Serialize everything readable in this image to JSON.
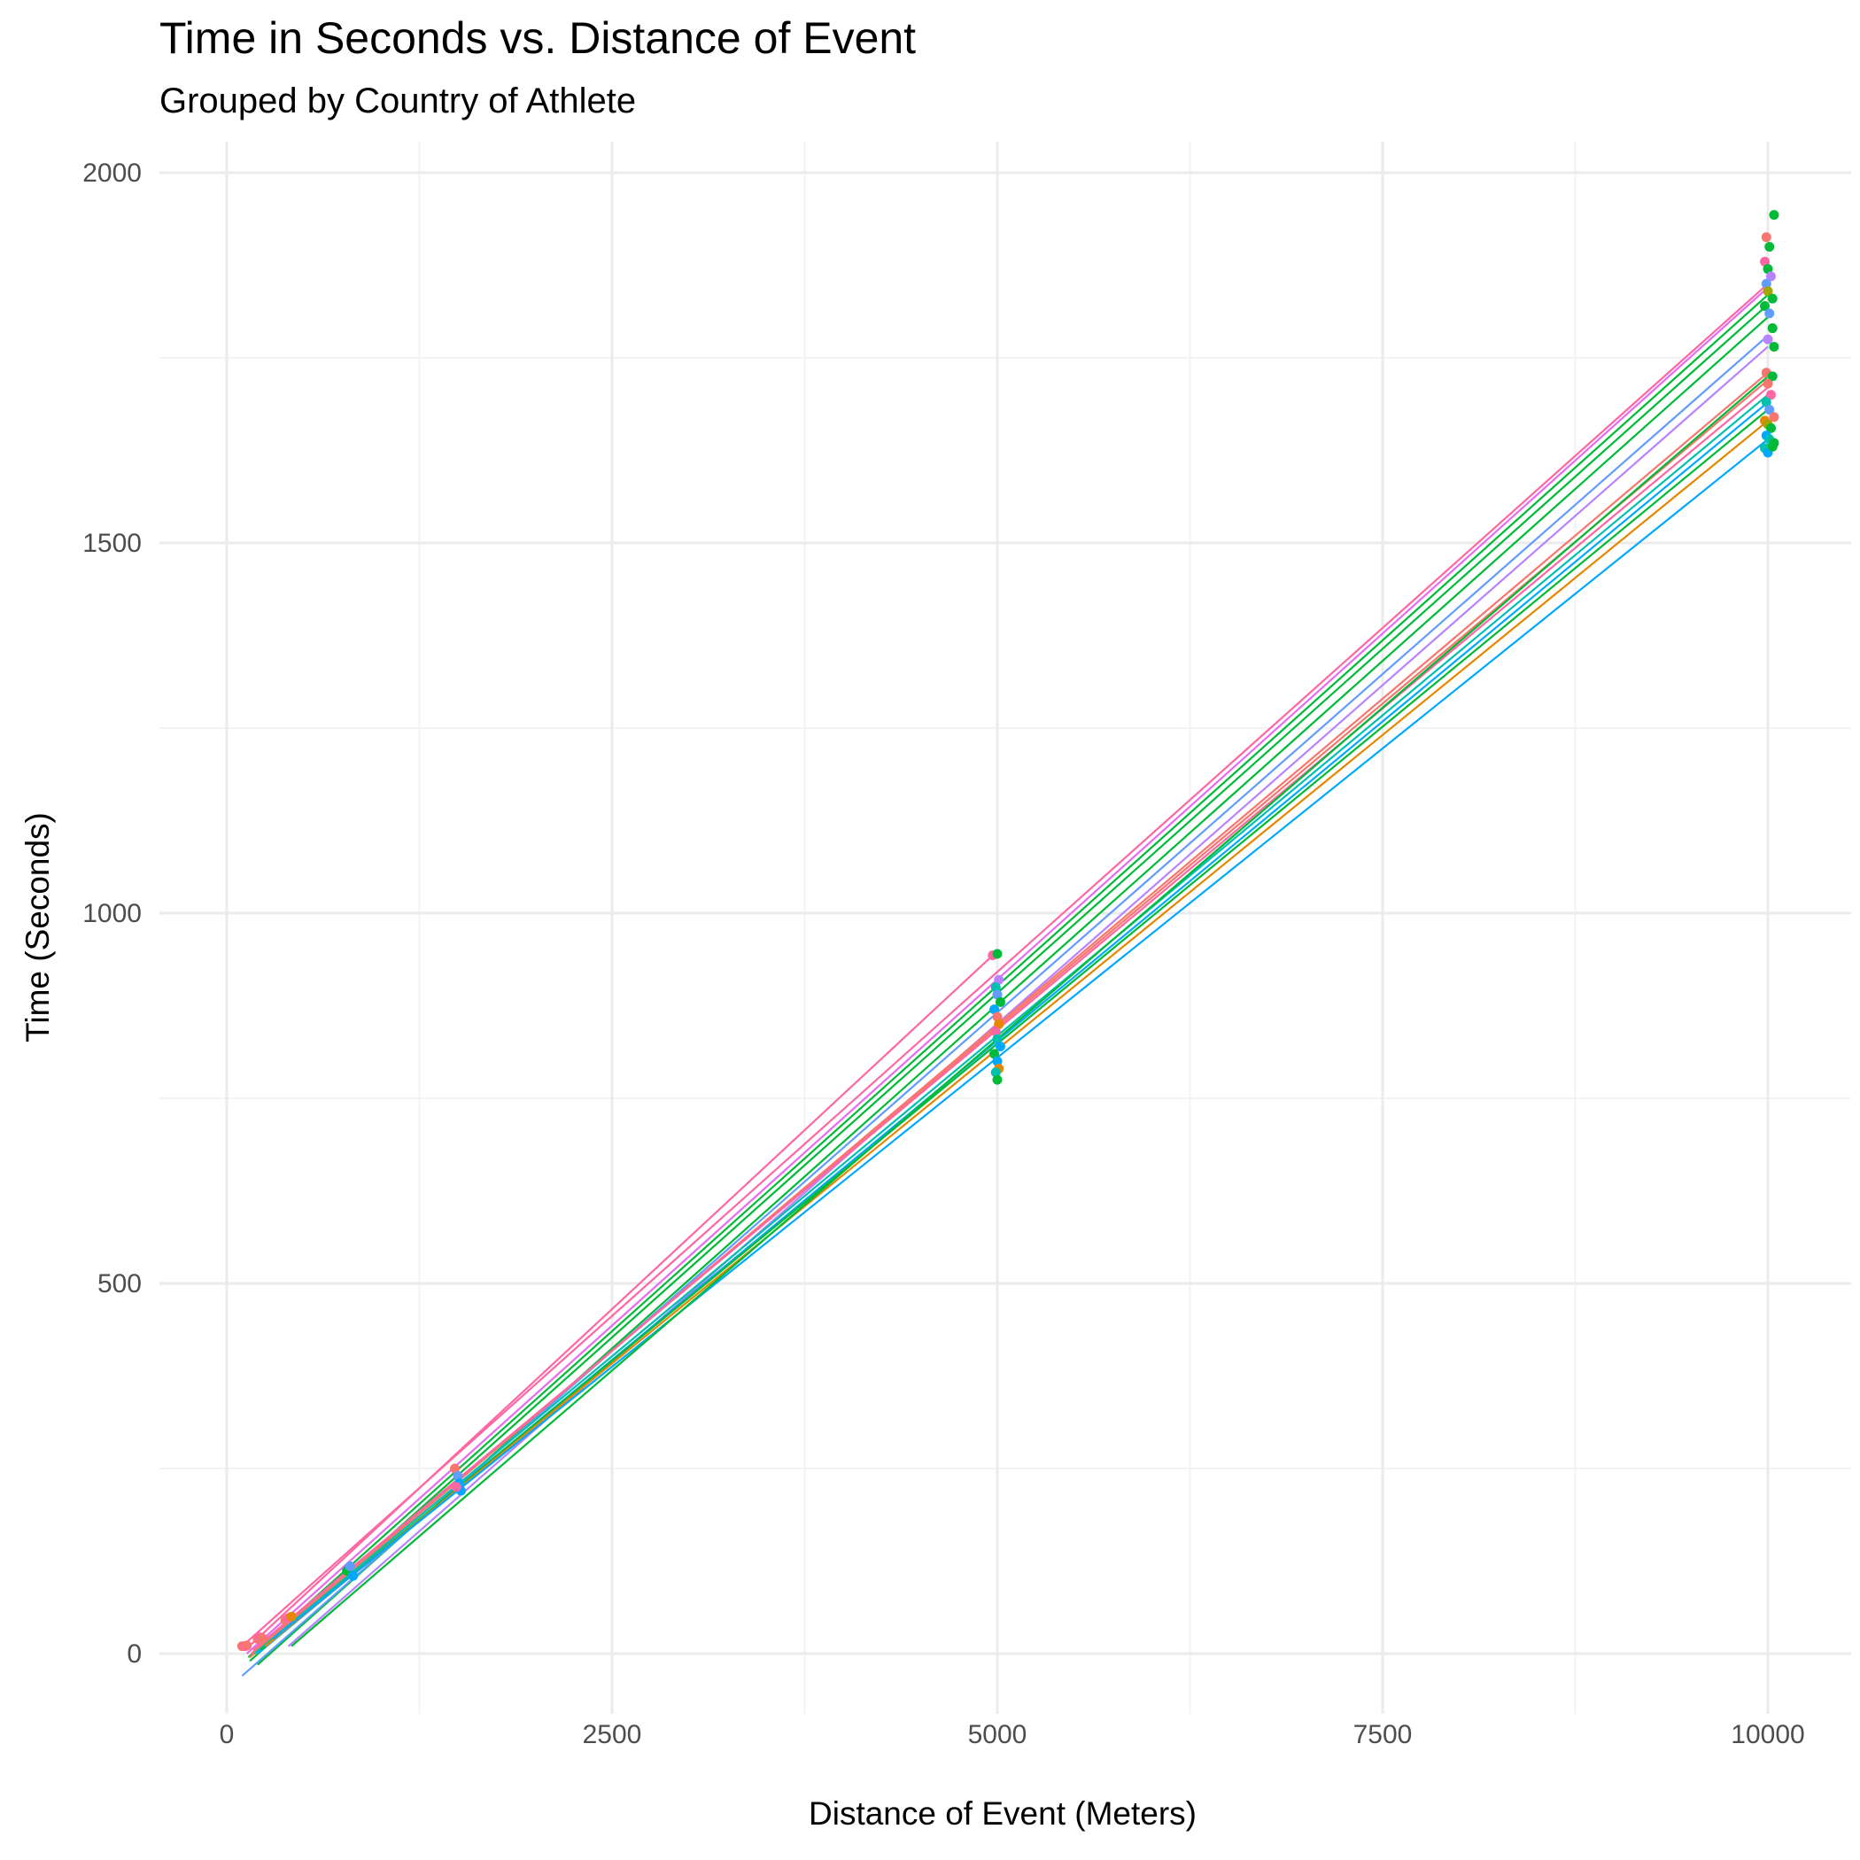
{
  "chart_data": {
    "type": "scatter",
    "title": "Time in Seconds vs. Distance of Event",
    "subtitle": "Grouped by Country of Athlete",
    "xlabel": "Distance of Event (Meters)",
    "ylabel": "Time (Seconds)",
    "xlim": [
      -400,
      10500
    ],
    "ylim": [
      -120,
      2040
    ],
    "x_ticks": [
      0,
      2500,
      5000,
      7500,
      10000
    ],
    "y_ticks": [
      0,
      500,
      1000,
      1500,
      2000
    ],
    "x_tick_labels": [
      "0",
      "2500",
      "5000",
      "7500",
      "10000"
    ],
    "y_tick_labels": [
      "0",
      "500",
      "1000",
      "1500",
      "2000"
    ],
    "grid": true,
    "legend": "none",
    "colors": {
      "background": "#ffffff",
      "grid_major": "#ebebeb",
      "grid_minor": "#f3f3f3",
      "palette": [
        "#F8766D",
        "#E58700",
        "#A3A500",
        "#00BA38",
        "#00C0AF",
        "#00A9FF",
        "#619CFF",
        "#B983FF",
        "#E76BF3",
        "#FF67A4"
      ]
    },
    "points": [
      {
        "x": 100,
        "y": 10,
        "color": "#F8766D"
      },
      {
        "x": 120,
        "y": 10,
        "color": "#FF67A4"
      },
      {
        "x": 130,
        "y": 11,
        "color": "#F8766D"
      },
      {
        "x": 200,
        "y": 20,
        "color": "#F8766D"
      },
      {
        "x": 215,
        "y": 22,
        "color": "#FF67A4"
      },
      {
        "x": 230,
        "y": 21,
        "color": "#F8766D"
      },
      {
        "x": 380,
        "y": 45,
        "color": "#F8766D"
      },
      {
        "x": 400,
        "y": 48,
        "color": "#FF67A4"
      },
      {
        "x": 420,
        "y": 50,
        "color": "#E58700"
      },
      {
        "x": 780,
        "y": 112,
        "color": "#00BA38"
      },
      {
        "x": 800,
        "y": 118,
        "color": "#619CFF"
      },
      {
        "x": 820,
        "y": 105,
        "color": "#00A9FF"
      },
      {
        "x": 1480,
        "y": 250,
        "color": "#F8766D"
      },
      {
        "x": 1500,
        "y": 240,
        "color": "#619CFF"
      },
      {
        "x": 1510,
        "y": 230,
        "color": "#00A9FF"
      },
      {
        "x": 1520,
        "y": 220,
        "color": "#00A9FF"
      },
      {
        "x": 1490,
        "y": 225,
        "color": "#FF67A4"
      },
      {
        "x": 4970,
        "y": 943,
        "color": "#FF67A4"
      },
      {
        "x": 5000,
        "y": 945,
        "color": "#00BA38"
      },
      {
        "x": 5010,
        "y": 910,
        "color": "#B983FF"
      },
      {
        "x": 4990,
        "y": 900,
        "color": "#00C0AF"
      },
      {
        "x": 5000,
        "y": 890,
        "color": "#619CFF"
      },
      {
        "x": 5020,
        "y": 880,
        "color": "#00BA38"
      },
      {
        "x": 4980,
        "y": 870,
        "color": "#00A9FF"
      },
      {
        "x": 5000,
        "y": 860,
        "color": "#F8766D"
      },
      {
        "x": 5010,
        "y": 850,
        "color": "#E58700"
      },
      {
        "x": 4990,
        "y": 840,
        "color": "#FF67A4"
      },
      {
        "x": 5000,
        "y": 830,
        "color": "#00C0AF"
      },
      {
        "x": 5020,
        "y": 820,
        "color": "#00A9FF"
      },
      {
        "x": 4980,
        "y": 810,
        "color": "#00BA38"
      },
      {
        "x": 5000,
        "y": 800,
        "color": "#00A9FF"
      },
      {
        "x": 5010,
        "y": 790,
        "color": "#E58700"
      },
      {
        "x": 4990,
        "y": 785,
        "color": "#00C0AF"
      },
      {
        "x": 5000,
        "y": 775,
        "color": "#00BA38"
      },
      {
        "x": 9990,
        "y": 1913,
        "color": "#F8766D"
      },
      {
        "x": 10040,
        "y": 1943,
        "color": "#00BA38"
      },
      {
        "x": 10010,
        "y": 1900,
        "color": "#00BA38"
      },
      {
        "x": 9980,
        "y": 1880,
        "color": "#FF67A4"
      },
      {
        "x": 10000,
        "y": 1870,
        "color": "#00BA38"
      },
      {
        "x": 10020,
        "y": 1860,
        "color": "#B983FF"
      },
      {
        "x": 9990,
        "y": 1850,
        "color": "#619CFF"
      },
      {
        "x": 10000,
        "y": 1840,
        "color": "#A3A500"
      },
      {
        "x": 10030,
        "y": 1830,
        "color": "#00BA38"
      },
      {
        "x": 9980,
        "y": 1820,
        "color": "#00BA38"
      },
      {
        "x": 10010,
        "y": 1810,
        "color": "#619CFF"
      },
      {
        "x": 10030,
        "y": 1790,
        "color": "#00BA38"
      },
      {
        "x": 10000,
        "y": 1775,
        "color": "#B983FF"
      },
      {
        "x": 10040,
        "y": 1765,
        "color": "#00BA38"
      },
      {
        "x": 9990,
        "y": 1730,
        "color": "#F8766D"
      },
      {
        "x": 10030,
        "y": 1725,
        "color": "#00BA38"
      },
      {
        "x": 10000,
        "y": 1715,
        "color": "#F8766D"
      },
      {
        "x": 10020,
        "y": 1700,
        "color": "#FF67A4"
      },
      {
        "x": 9990,
        "y": 1690,
        "color": "#00C0AF"
      },
      {
        "x": 10010,
        "y": 1680,
        "color": "#619CFF"
      },
      {
        "x": 10040,
        "y": 1670,
        "color": "#F8766D"
      },
      {
        "x": 9980,
        "y": 1665,
        "color": "#E58700"
      },
      {
        "x": 10000,
        "y": 1660,
        "color": "#A3A500"
      },
      {
        "x": 10020,
        "y": 1655,
        "color": "#00BA38"
      },
      {
        "x": 9990,
        "y": 1645,
        "color": "#00A9FF"
      },
      {
        "x": 10010,
        "y": 1640,
        "color": "#00C0AF"
      },
      {
        "x": 10040,
        "y": 1635,
        "color": "#00BA38"
      },
      {
        "x": 9980,
        "y": 1628,
        "color": "#00C0AF"
      },
      {
        "x": 10000,
        "y": 1622,
        "color": "#00A9FF"
      },
      {
        "x": 10030,
        "y": 1630,
        "color": "#00BA38"
      }
    ],
    "fit_lines": [
      {
        "x1": 100,
        "y1": 10,
        "x2": 9990,
        "y2": 1848,
        "color": "#FF67A4"
      },
      {
        "x1": 120,
        "y1": 5,
        "x2": 4970,
        "y2": 943,
        "color": "#FF67A4"
      },
      {
        "x1": 130,
        "y1": 0,
        "x2": 10000,
        "y2": 1845,
        "color": "#E76BF3"
      },
      {
        "x1": 140,
        "y1": -5,
        "x2": 10000,
        "y2": 1835,
        "color": "#00BA38"
      },
      {
        "x1": 150,
        "y1": -10,
        "x2": 10000,
        "y2": 1822,
        "color": "#00BA38"
      },
      {
        "x1": 200,
        "y1": -15,
        "x2": 10000,
        "y2": 1805,
        "color": "#00BA38"
      },
      {
        "x1": 100,
        "y1": -30,
        "x2": 10000,
        "y2": 1780,
        "color": "#619CFF"
      },
      {
        "x1": 400,
        "y1": 10,
        "x2": 10000,
        "y2": 1765,
        "color": "#B983FF"
      },
      {
        "x1": 150,
        "y1": -5,
        "x2": 10000,
        "y2": 1730,
        "color": "#F8766D"
      },
      {
        "x1": 160,
        "y1": 0,
        "x2": 10000,
        "y2": 1720,
        "color": "#F8766D"
      },
      {
        "x1": 170,
        "y1": 5,
        "x2": 10000,
        "y2": 1710,
        "color": "#FF67A4"
      },
      {
        "x1": 180,
        "y1": 0,
        "x2": 10000,
        "y2": 1700,
        "color": "#00C0AF"
      },
      {
        "x1": 200,
        "y1": 0,
        "x2": 10000,
        "y2": 1690,
        "color": "#00A9FF"
      },
      {
        "x1": 220,
        "y1": 5,
        "x2": 10000,
        "y2": 1680,
        "color": "#00BA38"
      },
      {
        "x1": 250,
        "y1": 10,
        "x2": 10000,
        "y2": 1665,
        "color": "#E58700"
      },
      {
        "x1": 300,
        "y1": 20,
        "x2": 10000,
        "y2": 1640,
        "color": "#00A9FF"
      },
      {
        "x1": 420,
        "y1": 10,
        "x2": 10000,
        "y2": 1725,
        "color": "#00BA38"
      }
    ]
  }
}
